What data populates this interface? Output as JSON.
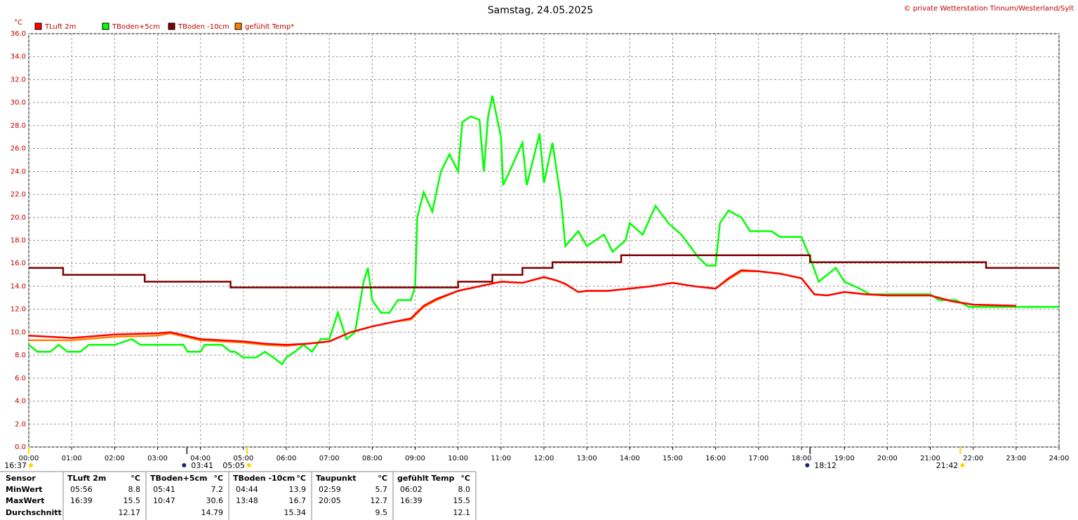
{
  "chart_data": {
    "type": "line",
    "title": "Samstag, 24.05.2025",
    "subtitle": "© private Wetterstation Tinnum/Westerland/Sylt",
    "y_label": "°C",
    "xlim": [
      0,
      24
    ],
    "ylim": [
      0,
      36
    ],
    "grid": true,
    "legend": "top-left",
    "xticks": [
      {
        "value": 0,
        "label": "00:00"
      },
      {
        "value": 1,
        "label": "01:00"
      },
      {
        "value": 2,
        "label": "02:00"
      },
      {
        "value": 3,
        "label": "03:00"
      },
      {
        "value": 4,
        "label": "04:00"
      },
      {
        "value": 5,
        "label": "05:00"
      },
      {
        "value": 6,
        "label": "06:00"
      },
      {
        "value": 7,
        "label": "07:00"
      },
      {
        "value": 8,
        "label": "08:00"
      },
      {
        "value": 9,
        "label": "09:00"
      },
      {
        "value": 10,
        "label": "10:00"
      },
      {
        "value": 11,
        "label": "11:00"
      },
      {
        "value": 12,
        "label": "12:00"
      },
      {
        "value": 13,
        "label": "13:00"
      },
      {
        "value": 14,
        "label": "14:00"
      },
      {
        "value": 15,
        "label": "15:00"
      },
      {
        "value": 16,
        "label": "16:00"
      },
      {
        "value": 17,
        "label": "17:00"
      },
      {
        "value": 18,
        "label": "18:00"
      },
      {
        "value": 19,
        "label": "19:00"
      },
      {
        "value": 20,
        "label": "20:00"
      },
      {
        "value": 21,
        "label": "21:00"
      },
      {
        "value": 22,
        "label": "22:00"
      },
      {
        "value": 23,
        "label": "23:00"
      },
      {
        "value": 24,
        "label": "24:00"
      }
    ],
    "yticks": [
      {
        "value": 0,
        "label": "0.0"
      },
      {
        "value": 2,
        "label": "2.0"
      },
      {
        "value": 4,
        "label": "4.0"
      },
      {
        "value": 6,
        "label": "6.0"
      },
      {
        "value": 8,
        "label": "8.0"
      },
      {
        "value": 10,
        "label": "10.0"
      },
      {
        "value": 12,
        "label": "12.0"
      },
      {
        "value": 14,
        "label": "14.0"
      },
      {
        "value": 16,
        "label": "16.0"
      },
      {
        "value": 18,
        "label": "18.0"
      },
      {
        "value": 20,
        "label": "20.0"
      },
      {
        "value": 22,
        "label": "22.0"
      },
      {
        "value": 24,
        "label": "24.0"
      },
      {
        "value": 26,
        "label": "26.0"
      },
      {
        "value": 28,
        "label": "28.0"
      },
      {
        "value": 30,
        "label": "30.0"
      },
      {
        "value": 32,
        "label": "32.0"
      },
      {
        "value": 34,
        "label": "34.0"
      },
      {
        "value": 36,
        "label": "36.0"
      }
    ],
    "series": [
      {
        "name": "TLuft 2m",
        "color": "#ff0000",
        "x": [
          0,
          1,
          2,
          3,
          3.3,
          4,
          5,
          5.5,
          6,
          6.5,
          7,
          7.5,
          8,
          8.5,
          8.9,
          9.2,
          9.5,
          10,
          10.5,
          11,
          11.5,
          12,
          12.3,
          12.5,
          12.8,
          13,
          13.5,
          14,
          14.5,
          15,
          15.5,
          16,
          16.3,
          16.6,
          17,
          17.5,
          18,
          18.3,
          18.6,
          19,
          19.5,
          20,
          21,
          21.5,
          22,
          23
        ],
        "values": [
          9.7,
          9.5,
          9.8,
          9.9,
          10.0,
          9.4,
          9.2,
          9.0,
          8.9,
          9.0,
          9.2,
          10.0,
          10.5,
          10.9,
          11.2,
          12.3,
          12.9,
          13.6,
          14.0,
          14.4,
          14.3,
          14.8,
          14.5,
          14.2,
          13.5,
          13.6,
          13.6,
          13.8,
          14.0,
          14.3,
          14.0,
          13.8,
          14.7,
          15.4,
          15.3,
          15.1,
          14.7,
          13.3,
          13.2,
          13.5,
          13.3,
          13.2,
          13.2,
          12.7,
          12.4,
          12.3
        ]
      },
      {
        "name": "TBoden+5cm",
        "color": "#00ff00",
        "x": [
          0,
          0.2,
          0.5,
          0.7,
          0.9,
          1.2,
          1.4,
          2,
          2.4,
          2.6,
          3,
          3.6,
          3.7,
          4,
          4.1,
          4.5,
          4.7,
          4.8,
          5,
          5.3,
          5.5,
          5.7,
          5.9,
          6,
          6.2,
          6.4,
          6.6,
          6.8,
          7,
          7.2,
          7.4,
          7.6,
          7.8,
          7.9,
          8,
          8.2,
          8.4,
          8.6,
          8.9,
          9,
          9.05,
          9.2,
          9.4,
          9.6,
          9.8,
          10,
          10.1,
          10.3,
          10.5,
          10.6,
          10.7,
          10.8,
          11,
          11.05,
          11.2,
          11.5,
          11.6,
          11.9,
          12,
          12.2,
          12.4,
          12.5,
          12.8,
          13,
          13.4,
          13.6,
          13.9,
          14,
          14.3,
          14.6,
          14.9,
          15.2,
          15.4,
          15.6,
          15.8,
          16,
          16.1,
          16.3,
          16.6,
          16.8,
          17.3,
          17.5,
          18,
          18.2,
          18.4,
          18.8,
          19,
          19.3,
          19.6,
          20,
          21,
          21.2,
          21.6,
          21.9,
          24
        ],
        "values": [
          8.9,
          8.3,
          8.3,
          8.9,
          8.3,
          8.3,
          8.9,
          8.9,
          9.4,
          8.9,
          8.9,
          8.9,
          8.3,
          8.3,
          8.9,
          8.9,
          8.3,
          8.3,
          7.8,
          7.8,
          8.3,
          7.8,
          7.2,
          7.8,
          8.3,
          8.9,
          8.3,
          9.4,
          9.4,
          11.7,
          9.4,
          10,
          14.4,
          15.6,
          12.8,
          11.7,
          11.7,
          12.8,
          12.8,
          14,
          20,
          22.2,
          20.5,
          24,
          25.5,
          24,
          28.3,
          28.8,
          28.5,
          24,
          28.8,
          30.6,
          27,
          22.8,
          24,
          26.5,
          22.8,
          27.3,
          23,
          26.5,
          21.5,
          17.5,
          18.8,
          17.5,
          18.5,
          17,
          18,
          19.5,
          18.5,
          21,
          19.5,
          18.5,
          17.5,
          16.5,
          15.8,
          15.8,
          19.5,
          20.6,
          20,
          18.8,
          18.8,
          18.3,
          18.3,
          16.5,
          14.4,
          15.6,
          14.4,
          13.9,
          13.3,
          13.3,
          13.3,
          12.8,
          12.8,
          12.2,
          12.2
        ]
      },
      {
        "name": "TBoden -10cm",
        "color": "#800000",
        "x": [
          0,
          0.8,
          0.8,
          2.7,
          2.7,
          4.7,
          4.7,
          10,
          10,
          10.8,
          10.8,
          11.5,
          11.5,
          12.2,
          12.2,
          13.8,
          13.8,
          18.2,
          18.2,
          22.3,
          22.3,
          24
        ],
        "values": [
          15.6,
          15.6,
          15.0,
          15.0,
          14.4,
          14.4,
          13.9,
          13.9,
          14.4,
          14.4,
          15.0,
          15.0,
          15.6,
          15.6,
          16.1,
          16.1,
          16.7,
          16.7,
          16.1,
          16.1,
          15.6,
          15.6
        ]
      },
      {
        "name": "gefühlt Temp*",
        "color": "#ff8000",
        "x": [
          0,
          1,
          2,
          3,
          3.3,
          4,
          5,
          5.5,
          6,
          6.5,
          7,
          7.5,
          8,
          8.5,
          8.9,
          9.2,
          9.5,
          10,
          10.5,
          11,
          11.5,
          12,
          12.3,
          12.5,
          12.8,
          13,
          13.5,
          14,
          14.5,
          15,
          15.5,
          16,
          16.3,
          16.6,
          17,
          17.5,
          18,
          18.3,
          18.6,
          19,
          19.5,
          20,
          21,
          21.5,
          22,
          23
        ],
        "values": [
          9.3,
          9.3,
          9.6,
          9.7,
          9.9,
          9.3,
          9.1,
          8.9,
          8.8,
          9.0,
          9.2,
          10.0,
          10.5,
          10.9,
          11.1,
          12.2,
          12.8,
          13.6,
          14.0,
          14.4,
          14.3,
          14.8,
          14.5,
          14.2,
          13.5,
          13.6,
          13.6,
          13.8,
          14.0,
          14.3,
          14.0,
          13.8,
          14.6,
          15.3,
          15.3,
          15.1,
          14.7,
          13.3,
          13.2,
          13.5,
          13.3,
          13.2,
          13.2,
          12.7,
          12.4,
          12.3
        ]
      }
    ],
    "events": [
      {
        "x": 0,
        "label": "16:37"
      },
      {
        "x": 3.683,
        "label": "03:41"
      },
      {
        "x": 5.083,
        "label": "05:05"
      },
      {
        "x": 18.2,
        "label": "18:12"
      },
      {
        "x": 21.7,
        "label": "21:42"
      }
    ]
  },
  "table": {
    "header": [
      "Sensor",
      "TLuft 2m",
      "°C",
      "TBoden+5cm",
      "°C",
      "TBoden -10cm",
      "°C",
      "Taupunkt",
      "°C",
      "gefühlt Temp",
      "°C"
    ],
    "rows": [
      [
        "MinWert",
        "05:56",
        "8.8",
        "05:41",
        "7.2",
        "04:44",
        "13.9",
        "02:59",
        "5.7",
        "06:02",
        "8.0"
      ],
      [
        "MaxWert",
        "16:39",
        "15.5",
        "10:47",
        "30.6",
        "13:48",
        "16.7",
        "20:05",
        "12.7",
        "16:39",
        "15.5"
      ],
      [
        "Durchschnitt",
        "",
        "12.17",
        "",
        "14.79",
        "",
        "15.34",
        "",
        "9.5",
        "",
        "12.1"
      ]
    ]
  }
}
